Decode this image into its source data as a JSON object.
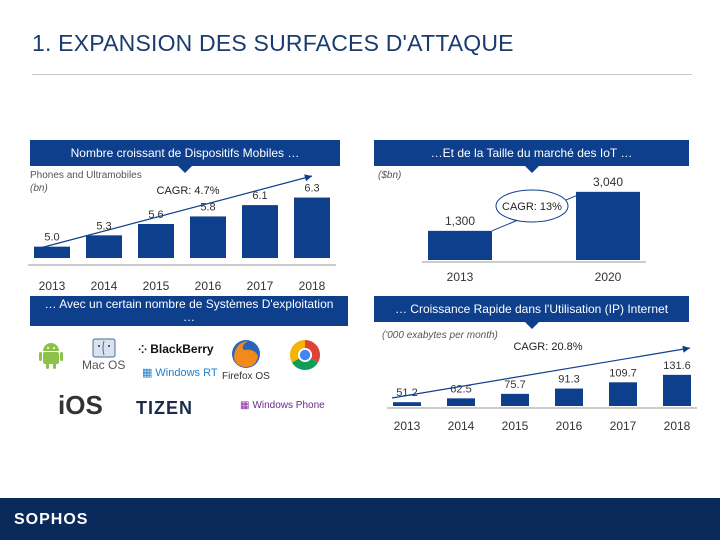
{
  "page": {
    "title": "1. EXPANSION DES SURFACES D'ATTAQUE",
    "footer_brand": "SOPHOS"
  },
  "banners": {
    "top_left": "Nombre croissant de Dispositifs Mobiles …",
    "top_right": "…Et de la Taille du marché des IoT …",
    "bottom_left": "… Avec un certain nombre de Systèmes D'exploitation …",
    "bottom_right": "… Croissance Rapide dans l'Utilisation (IP) Internet"
  },
  "os_logos": {
    "mac": "Mac OS",
    "blackberry": "BlackBerry",
    "windows_rt": "Windows RT",
    "firefox": "Firefox OS",
    "ios": "iOS",
    "tizen": "TIZEN",
    "windows_phone": "Windows Phone"
  },
  "colors": {
    "brand_blue": "#0e3f8c",
    "bar_blue": "#0e3f8c",
    "footer_blue": "#0a2a5c"
  },
  "chart_data": [
    {
      "id": "mobile",
      "type": "bar",
      "title": "Phones and Ultramobiles",
      "ylabel": "(bn)",
      "categories": [
        "2013",
        "2014",
        "2015",
        "2016",
        "2017",
        "2018"
      ],
      "values": [
        5.0,
        5.3,
        5.6,
        5.8,
        6.1,
        6.3
      ],
      "labels": [
        "5.0",
        "5.3",
        "5.6",
        "5.8",
        "6.1",
        "6.3"
      ],
      "ylim": [
        4.7,
        6.5
      ],
      "annotation": "CAGR: 4.7%"
    },
    {
      "id": "iot",
      "type": "bar",
      "ylabel": "($bn)",
      "categories": [
        "2013",
        "2020"
      ],
      "values": [
        1300,
        3040
      ],
      "labels": [
        "1,300",
        "3,040"
      ],
      "ylim": [
        0,
        3300
      ],
      "annotation": "CAGR: 13%"
    },
    {
      "id": "ip",
      "type": "bar",
      "ylabel": "('000 exabytes per month)",
      "categories": [
        "2013",
        "2014",
        "2015",
        "2016",
        "2017",
        "2018"
      ],
      "values": [
        51.2,
        62.5,
        75.7,
        91.3,
        109.7,
        131.6
      ],
      "labels": [
        "51.2",
        "62.5",
        "75.7",
        "91.3",
        "109.7",
        "131.6"
      ],
      "ylim": [
        40,
        140
      ],
      "annotation": "CAGR: 20.8%"
    }
  ]
}
